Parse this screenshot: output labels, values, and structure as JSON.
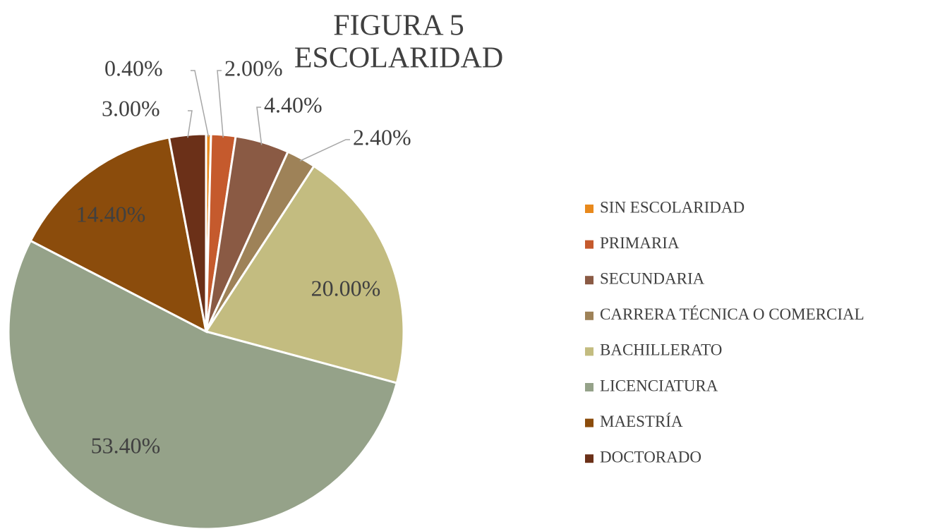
{
  "chart_data": {
    "type": "pie",
    "title": [
      "FIGURA 5",
      "ESCOLARIDAD"
    ],
    "categories": [
      "SIN ESCOLARIDAD",
      "PRIMARIA",
      "SECUNDARIA",
      "CARRERA TÉCNICA O COMERCIAL",
      "BACHILLERATO",
      "LICENCIATURA",
      "MAESTRÍA",
      "DOCTORADO"
    ],
    "values": [
      0.4,
      2.0,
      4.4,
      2.4,
      20.0,
      53.4,
      14.4,
      3.0
    ],
    "value_labels": [
      "0.40%",
      "2.00%",
      "4.40%",
      "2.40%",
      "20.00%",
      "53.40%",
      "14.40%",
      "3.00%"
    ],
    "colors": [
      "#e8891c",
      "#c55a2d",
      "#8a5a44",
      "#9e8258",
      "#c3bc80",
      "#95a289",
      "#8b4c0c",
      "#6b3018"
    ],
    "legend": "right"
  }
}
